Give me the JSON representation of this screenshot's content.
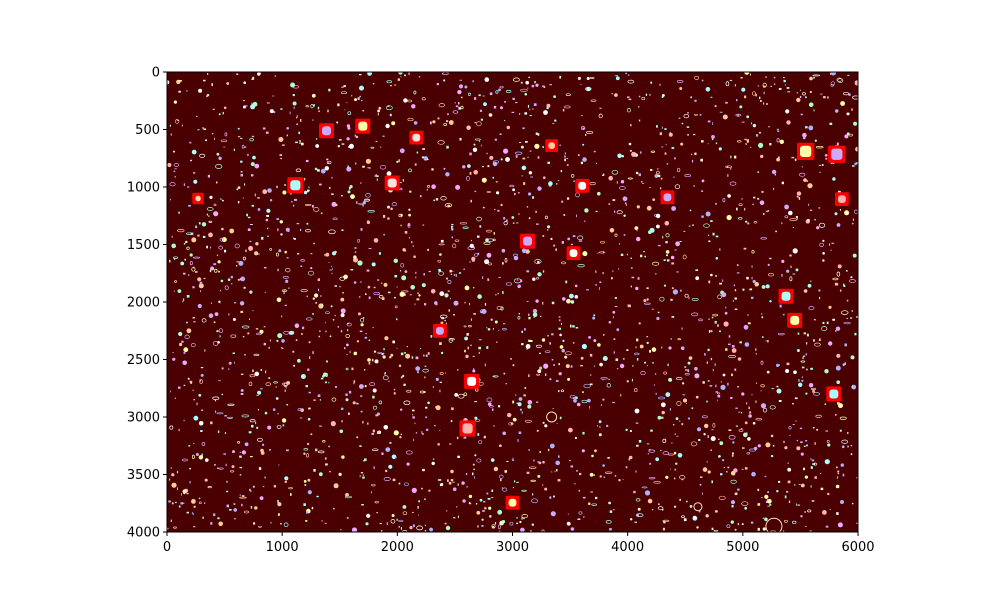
{
  "chart_data": {
    "type": "image",
    "title": "",
    "xlabel": "",
    "ylabel": "",
    "xlim": [
      0,
      6000
    ],
    "ylim": [
      4000,
      0
    ],
    "y_inverted": true,
    "grid": false,
    "background_color": "#4a0000",
    "box_color": "#ff0000",
    "blob_colors": [
      "#ffffaa",
      "#ffb3b3",
      "#aab3ff",
      "#ccaaff",
      "#aaffcc",
      "#ffffff",
      "#aaffff",
      "#ffcc99",
      "#eeaaff"
    ],
    "xticks": [
      {
        "value": 0,
        "label": "0"
      },
      {
        "value": 1000,
        "label": "1000"
      },
      {
        "value": 2000,
        "label": "2000"
      },
      {
        "value": 3000,
        "label": "3000"
      },
      {
        "value": 4000,
        "label": "4000"
      },
      {
        "value": 5000,
        "label": "5000"
      },
      {
        "value": 6000,
        "label": "6000"
      }
    ],
    "yticks": [
      {
        "value": 0,
        "label": "0"
      },
      {
        "value": 500,
        "label": "500"
      },
      {
        "value": 1000,
        "label": "1000"
      },
      {
        "value": 1500,
        "label": "1500"
      },
      {
        "value": 2000,
        "label": "2000"
      },
      {
        "value": 2500,
        "label": "2500"
      },
      {
        "value": 3000,
        "label": "3000"
      },
      {
        "value": 3500,
        "label": "3500"
      },
      {
        "value": 4000,
        "label": "4000"
      }
    ],
    "detections": [
      {
        "x": 1385,
        "y": 510,
        "w": 130,
        "h": 130,
        "fill": "#ccaaff"
      },
      {
        "x": 1700,
        "y": 470,
        "w": 130,
        "h": 130,
        "fill": "#ffffaa"
      },
      {
        "x": 2165,
        "y": 570,
        "w": 120,
        "h": 120,
        "fill": "#ffe0e0"
      },
      {
        "x": 3340,
        "y": 640,
        "w": 110,
        "h": 110,
        "fill": "#ffcc99"
      },
      {
        "x": 5545,
        "y": 690,
        "w": 150,
        "h": 150,
        "fill": "#ffffaa"
      },
      {
        "x": 5815,
        "y": 715,
        "w": 150,
        "h": 150,
        "fill": "#ccaaff"
      },
      {
        "x": 1115,
        "y": 985,
        "w": 140,
        "h": 140,
        "fill": "#aaffff"
      },
      {
        "x": 1955,
        "y": 965,
        "w": 130,
        "h": 130,
        "fill": "#ffe0e0"
      },
      {
        "x": 3605,
        "y": 990,
        "w": 120,
        "h": 120,
        "fill": "#ffffff"
      },
      {
        "x": 270,
        "y": 1100,
        "w": 100,
        "h": 100,
        "fill": "#ffe0b0"
      },
      {
        "x": 4345,
        "y": 1090,
        "w": 120,
        "h": 120,
        "fill": "#ccaaff"
      },
      {
        "x": 5860,
        "y": 1105,
        "w": 120,
        "h": 120,
        "fill": "#ffb3b3"
      },
      {
        "x": 3130,
        "y": 1470,
        "w": 130,
        "h": 130,
        "fill": "#ccaaff"
      },
      {
        "x": 3530,
        "y": 1575,
        "w": 120,
        "h": 120,
        "fill": "#ffffff"
      },
      {
        "x": 5375,
        "y": 1950,
        "w": 130,
        "h": 130,
        "fill": "#aaffff"
      },
      {
        "x": 5450,
        "y": 2160,
        "w": 130,
        "h": 130,
        "fill": "#ffffaa"
      },
      {
        "x": 2370,
        "y": 2250,
        "w": 120,
        "h": 120,
        "fill": "#ccaaff"
      },
      {
        "x": 2645,
        "y": 2690,
        "w": 130,
        "h": 130,
        "fill": "#ffffff"
      },
      {
        "x": 5790,
        "y": 2800,
        "w": 130,
        "h": 130,
        "fill": "#aaffff"
      },
      {
        "x": 2610,
        "y": 3100,
        "w": 140,
        "h": 140,
        "fill": "#ffb3b3"
      },
      {
        "x": 3000,
        "y": 3745,
        "w": 120,
        "h": 120,
        "fill": "#ffffaa"
      }
    ]
  }
}
